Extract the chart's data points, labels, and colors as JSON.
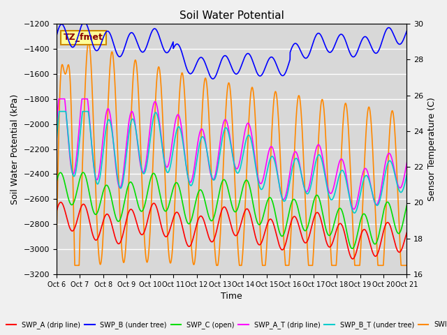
{
  "title": "Soil Water Potential",
  "xlabel": "Time",
  "ylabel_left": "Soil Water Potential (kPa)",
  "ylabel_right": "Sensor Temperature (C)",
  "ylim_left": [
    -3200,
    -1200
  ],
  "ylim_right": [
    16,
    30
  ],
  "yticks_left": [
    -3200,
    -3000,
    -2800,
    -2600,
    -2400,
    -2200,
    -2000,
    -1800,
    -1600,
    -1400,
    -1200
  ],
  "yticks_right": [
    16,
    18,
    20,
    22,
    24,
    26,
    28,
    30
  ],
  "xlim": [
    0,
    15
  ],
  "xtick_labels": [
    "Oct 6",
    "Oct 7",
    "Oct 8",
    "Oct 9",
    "Oct 10",
    "Oct 11",
    "Oct 12",
    "Oct 13",
    "Oct 14",
    "Oct 15",
    "Oct 16",
    "Oct 17",
    "Oct 18",
    "Oct 19",
    "Oct 20",
    "Oct 21"
  ],
  "plot_bg": "#d8d8d8",
  "fig_bg": "#f0f0f0",
  "grid_color": "#ffffff",
  "annotation_text": "TZ_fmet",
  "annotation_bg": "#ffff99",
  "annotation_border": "#cc8800",
  "color_blue": "#0000ff",
  "color_red": "#ff0000",
  "color_green": "#00dd00",
  "color_magenta": "#ff00ff",
  "color_cyan": "#00cccc",
  "color_orange": "#ff8800",
  "lw": 1.2
}
